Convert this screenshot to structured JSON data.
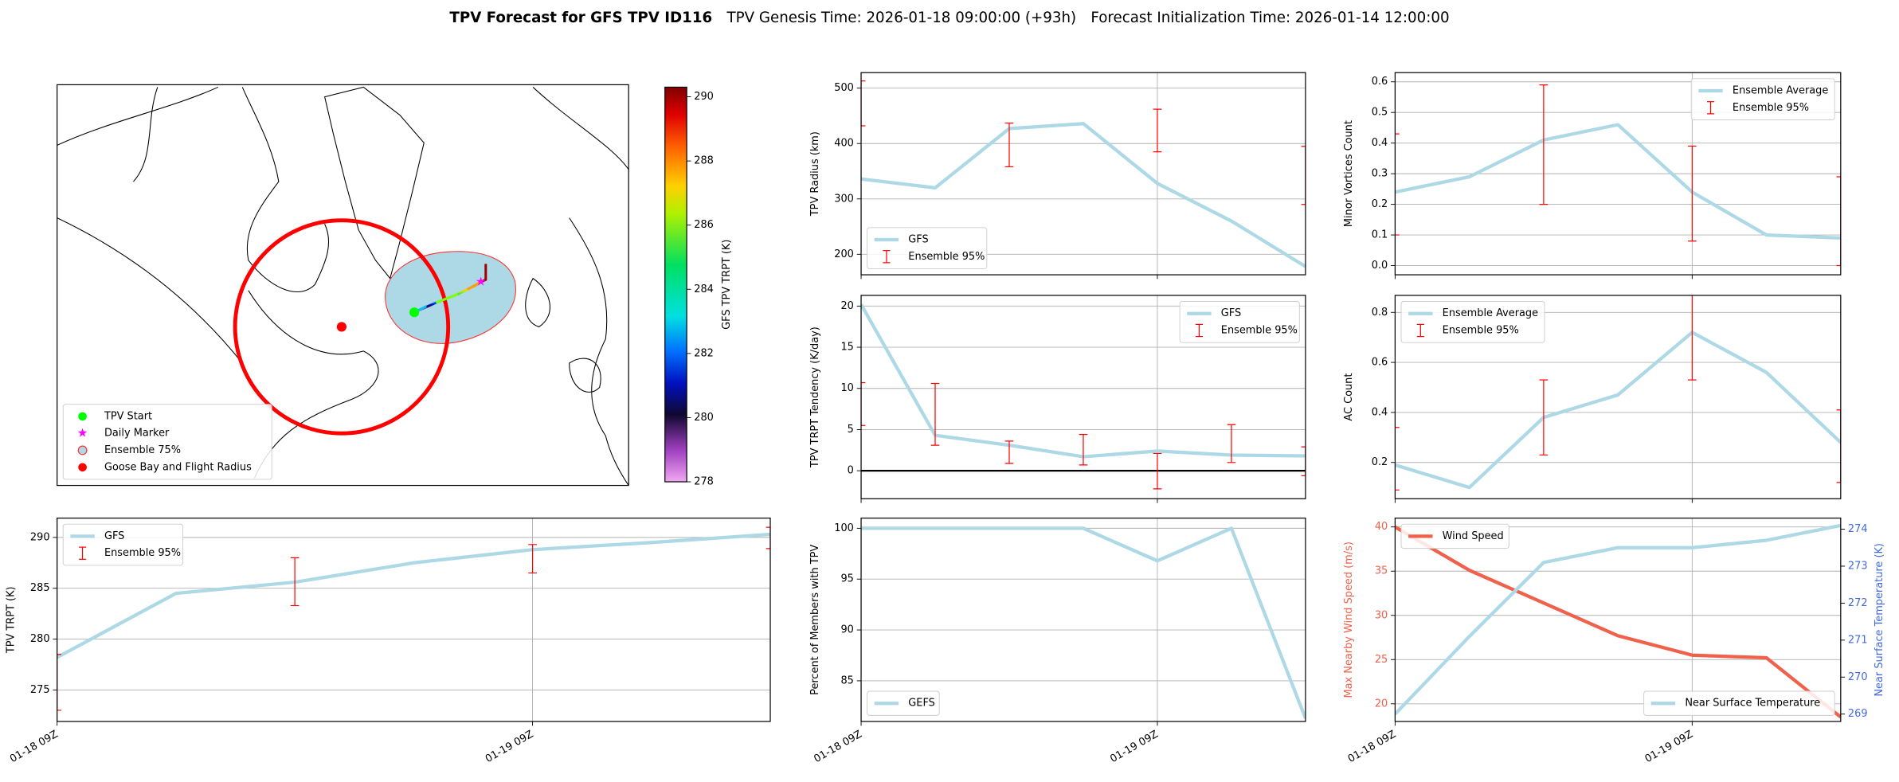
{
  "title": {
    "bold": "TPV Forecast for GFS TPV ID116",
    "genesis": "TPV Genesis Time: 2026-01-18 09:00:00 (+93h)",
    "init": "Forecast Initialization Time: 2026-01-14 12:00:00"
  },
  "chart_data": [
    {
      "type": "map",
      "legend": [
        {
          "label": "TPV Start",
          "color": "#00ff00",
          "marker": "circle"
        },
        {
          "label": "Daily Marker",
          "color": "#ff00ff",
          "marker": "star"
        },
        {
          "label": "Ensemble 75%",
          "color": "#add8e6",
          "marker": "ring"
        },
        {
          "label": "Goose Bay and Flight Radius",
          "color": "#ff0000",
          "marker": "circle"
        }
      ],
      "legend_loc": "lower left",
      "colorbar": {
        "label": "GFS TPV TRPT (K)",
        "lim": [
          278,
          290.3
        ],
        "ticks": [
          278,
          280,
          282,
          284,
          286,
          288,
          290
        ]
      }
    },
    {
      "type": "line",
      "ylabel": "TPV Radius (km)",
      "sharex": 6,
      "ylim": [
        163,
        528
      ],
      "yticks": [
        200,
        300,
        400,
        500
      ],
      "grid": true,
      "legend": "lower left",
      "series": [
        {
          "name": "GFS",
          "color": "#add8e6",
          "values": [
            336,
            320,
            427,
            436,
            328,
            260,
            178
          ]
        },
        {
          "name": "Ensemble 95%",
          "color": "#ff0000",
          "kind": "errorbar",
          "low": [
            432,
            null,
            358,
            null,
            385,
            null,
            290
          ],
          "high": [
            513,
            null,
            437,
            null,
            462,
            null,
            395
          ]
        }
      ]
    },
    {
      "type": "line",
      "ylabel": "Minor Vortices Count",
      "sharex": 7,
      "ylim": [
        -0.03,
        0.63
      ],
      "yticks": [
        {
          "value": 0,
          "label": "0.0"
        },
        0.1,
        0.2,
        0.3,
        0.4,
        0.5,
        0.6
      ],
      "grid": true,
      "legend": "upper right",
      "series": [
        {
          "name": "Ensemble Average",
          "color": "#add8e6",
          "values": [
            0.24,
            0.29,
            0.41,
            0.46,
            0.24,
            0.1,
            0.09
          ]
        },
        {
          "name": "Ensemble 95%",
          "color": "#ff0000",
          "kind": "errorbar",
          "low": [
            0.1,
            null,
            0.2,
            null,
            0.08,
            null,
            0.0
          ],
          "high": [
            0.43,
            null,
            0.59,
            null,
            0.39,
            null,
            0.29
          ]
        }
      ]
    },
    {
      "type": "line",
      "ylabel": "TPV TRPT Tendency (K/day)",
      "sharex": 6,
      "ylim": [
        -3.4,
        21.3
      ],
      "yticks": [
        0,
        5,
        10,
        15,
        20
      ],
      "grid": true,
      "hline": 0,
      "legend": "upper right",
      "series": [
        {
          "name": "GFS",
          "color": "#add8e6",
          "values": [
            20.2,
            4.3,
            3.1,
            1.7,
            2.4,
            1.9,
            1.8
          ]
        },
        {
          "name": "Ensemble 95%",
          "color": "#ff0000",
          "kind": "errorbar",
          "low": [
            5.5,
            3.1,
            0.9,
            0.7,
            -2.2,
            1.0,
            -0.6
          ],
          "high": [
            10.7,
            10.6,
            3.6,
            4.4,
            2.1,
            5.6,
            2.9
          ]
        }
      ]
    },
    {
      "type": "line",
      "ylabel": "AC Count",
      "sharex": 7,
      "ylim": [
        0.055,
        0.868
      ],
      "yticks": [
        0.2,
        0.4,
        0.6,
        0.8
      ],
      "grid": true,
      "legend": "upper left",
      "series": [
        {
          "name": "Ensemble Average",
          "color": "#add8e6",
          "values": [
            0.19,
            0.1,
            0.38,
            0.47,
            0.72,
            0.56,
            0.28
          ]
        },
        {
          "name": "Ensemble 95%",
          "color": "#ff0000",
          "kind": "errorbar",
          "low": [
            0.09,
            null,
            0.23,
            null,
            0.53,
            null,
            0.12
          ],
          "high": [
            0.34,
            null,
            0.53,
            null,
            0.87,
            null,
            0.41
          ]
        }
      ]
    },
    {
      "type": "line",
      "ylabel": "TPV TRPT (K)",
      "categories": [
        "01-18 09Z",
        null,
        null,
        null,
        "01-19 09Z",
        null,
        null
      ],
      "ylim": [
        271.9,
        291.9
      ],
      "yticks": [
        275,
        280,
        285,
        290
      ],
      "grid": true,
      "legend": "upper left",
      "series": [
        {
          "name": "GFS",
          "color": "#add8e6",
          "values": [
            278.2,
            284.5,
            285.6,
            287.5,
            288.8,
            289.5,
            290.3
          ]
        },
        {
          "name": "Ensemble 95%",
          "color": "#ff0000",
          "kind": "errorbar",
          "low": [
            273,
            null,
            283.3,
            null,
            286.5,
            null,
            288.9
          ],
          "high": [
            278.5,
            null,
            288,
            null,
            289.3,
            null,
            291
          ]
        }
      ]
    },
    {
      "type": "line",
      "ylabel": "Percent of Members with TPV",
      "categories": [
        "01-18 09Z",
        null,
        null,
        null,
        "01-19 09Z",
        null,
        null
      ],
      "ylim": [
        81,
        101
      ],
      "yticks": [
        85,
        90,
        95,
        100
      ],
      "grid": true,
      "legend": "lower left",
      "series": [
        {
          "name": "GEFS",
          "color": "#add8e6",
          "values": [
            100,
            100,
            100,
            100,
            96.8,
            100,
            81.3
          ]
        }
      ]
    },
    {
      "type": "line",
      "ylabel": "Max Nearby Wind Speed (m/s)",
      "y2label": "Near Surface Temperature (K)",
      "categories": [
        "01-18 09Z",
        null,
        null,
        null,
        "01-19 09Z",
        null,
        null
      ],
      "ylim": [
        18,
        41
      ],
      "yticks": [
        20,
        25,
        30,
        35,
        40
      ],
      "y2lim": [
        268.8,
        274.3
      ],
      "y2ticks": [
        269,
        270,
        271,
        272,
        273,
        274
      ],
      "grid": true,
      "series": [
        {
          "name": "Wind Speed",
          "color": "#f0604a",
          "legend": "upper left",
          "values": [
            40,
            35.1,
            31.4,
            27.7,
            25.5,
            25.2,
            18.5
          ]
        },
        {
          "name": "Near Surface Temperature",
          "color": "#add8e6",
          "axis_color": "#4169e1",
          "axis": "y2",
          "legend": "lower right",
          "values": [
            269.0,
            271.1,
            273.1,
            273.5,
            273.5,
            273.7,
            274.1
          ]
        }
      ]
    }
  ]
}
